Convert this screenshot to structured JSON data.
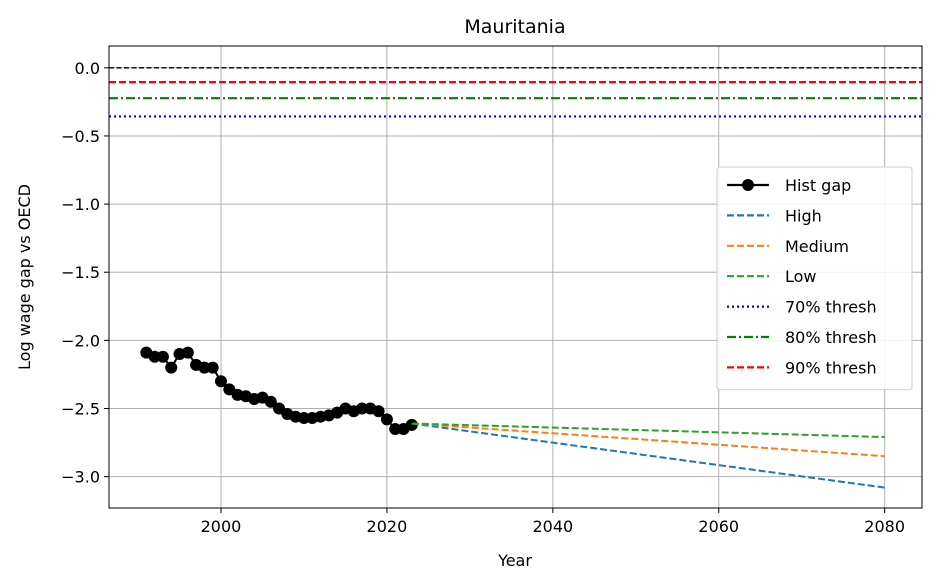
{
  "chart_data": {
    "type": "line",
    "title": "Mauritania",
    "xlabel": "Year",
    "ylabel": "Log wage gap vs OECD",
    "xlim": [
      1986.5,
      2084.5
    ],
    "ylim": [
      -3.23,
      0.16
    ],
    "xticks": [
      2000,
      2020,
      2040,
      2060,
      2080
    ],
    "yticks": [
      0.0,
      -0.5,
      -1.0,
      -1.5,
      -2.0,
      -2.5,
      -3.0
    ],
    "xtick_labels": [
      "2000",
      "2020",
      "2040",
      "2060",
      "2080"
    ],
    "ytick_labels": [
      "0.0",
      "−0.5",
      "−1.0",
      "−1.5",
      "−2.0",
      "−2.5",
      "−3.0"
    ],
    "grid": true,
    "legend_position": "center-right",
    "zero_line": {
      "y": 0.0,
      "color": "#000000",
      "style": "dashed"
    },
    "series": [
      {
        "name": "Hist gap",
        "color": "#000000",
        "style": "solid-marker",
        "x": [
          1991,
          1992,
          1993,
          1994,
          1995,
          1996,
          1997,
          1998,
          1999,
          2000,
          2001,
          2002,
          2003,
          2004,
          2005,
          2006,
          2007,
          2008,
          2009,
          2010,
          2011,
          2012,
          2013,
          2014,
          2015,
          2016,
          2017,
          2018,
          2019,
          2020,
          2021,
          2022,
          2023
        ],
        "y": [
          -2.09,
          -2.12,
          -2.12,
          -2.2,
          -2.1,
          -2.09,
          -2.18,
          -2.2,
          -2.2,
          -2.3,
          -2.36,
          -2.4,
          -2.41,
          -2.43,
          -2.42,
          -2.45,
          -2.5,
          -2.54,
          -2.56,
          -2.57,
          -2.57,
          -2.56,
          -2.55,
          -2.53,
          -2.5,
          -2.52,
          -2.5,
          -2.5,
          -2.52,
          -2.58,
          -2.65,
          -2.65,
          -2.62
        ]
      },
      {
        "name": "High",
        "color": "#1f77b4",
        "style": "dashed",
        "x": [
          2023,
          2080
        ],
        "y": [
          -2.61,
          -3.08
        ]
      },
      {
        "name": "Medium",
        "color": "#ff7f0e",
        "style": "dashed",
        "x": [
          2023,
          2080
        ],
        "y": [
          -2.61,
          -2.85
        ]
      },
      {
        "name": "Low",
        "color": "#2ca02c",
        "style": "dashed",
        "x": [
          2023,
          2080
        ],
        "y": [
          -2.61,
          -2.71
        ]
      },
      {
        "name": "70% thresh",
        "color": "#0000ff",
        "style": "dotted",
        "hline": -0.357
      },
      {
        "name": "80% thresh",
        "color": "#008000",
        "style": "dashdot",
        "hline": -0.223
      },
      {
        "name": "90% thresh",
        "color": "#ff0000",
        "style": "dashed",
        "hline": -0.105
      }
    ]
  }
}
